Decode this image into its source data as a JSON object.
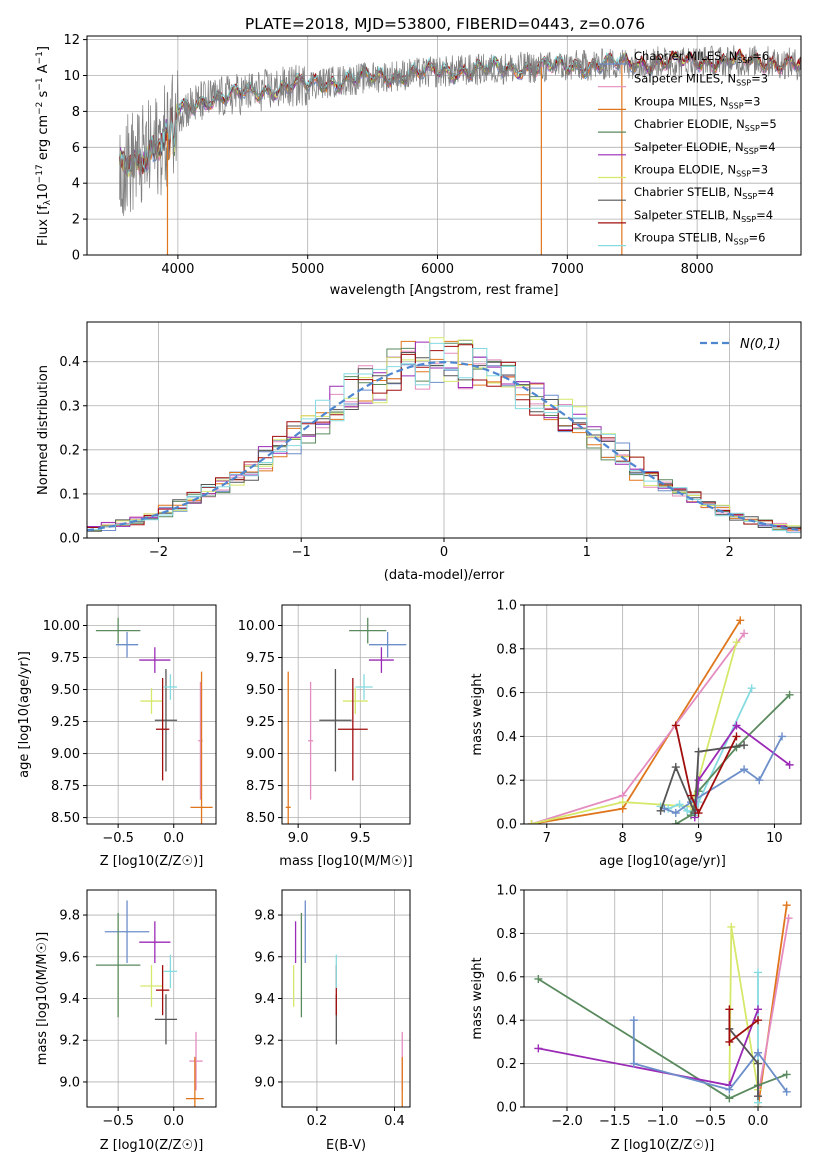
{
  "figure": {
    "title": "PLATE=2018, MJD=53800, FIBERID=0443, z=0.076"
  },
  "colors": {
    "Chabrier MILES": "#6c8ec9",
    "Salpeter MILES": "#e48cbf",
    "Kroupa MILES": "#e0761c",
    "Chabrier ELODIE": "#5a8a5e",
    "Salpeter ELODIE": "#9b2ab6",
    "Kroupa ELODIE": "#d6e86a",
    "Chabrier STELIB": "#555555",
    "Salpeter STELIB": "#a10e0e",
    "Kroupa STELIB": "#86dbe0",
    "normal_curve": "#4f86d0",
    "data_spectrum": "#7f7f7f"
  },
  "chart_data": [
    {
      "type": "line",
      "panel": "spectrum",
      "xlabel": "wavelength [Angstrom, rest frame]",
      "ylabel": "Flux [f_λ 10^-17 erg cm^-2 s^-1 A^-1]",
      "xlim": [
        3300,
        8800
      ],
      "ylim": [
        0,
        12.2
      ],
      "xticks": [
        4000,
        5000,
        6000,
        7000,
        8000
      ],
      "yticks": [
        0,
        2,
        4,
        6,
        8,
        10,
        12
      ],
      "legend_position": "right",
      "legend": [
        {
          "label": "Chabrier MILES, N",
          "sub": "SSP",
          "suffix": "=6"
        },
        {
          "label": "Salpeter MILES, N",
          "sub": "SSP",
          "suffix": "=3"
        },
        {
          "label": "Kroupa MILES, N",
          "sub": "SSP",
          "suffix": "=3"
        },
        {
          "label": "Chabrier ELODIE, N",
          "sub": "SSP",
          "suffix": "=5"
        },
        {
          "label": "Salpeter ELODIE, N",
          "sub": "SSP",
          "suffix": "=4"
        },
        {
          "label": "Kroupa ELODIE, N",
          "sub": "SSP",
          "suffix": "=3"
        },
        {
          "label": "Chabrier STELIB, N",
          "sub": "SSP",
          "suffix": "=4"
        },
        {
          "label": "Salpeter STELIB, N",
          "sub": "SSP",
          "suffix": "=4"
        },
        {
          "label": "Kroupa STELIB, N",
          "sub": "SSP",
          "suffix": "=6"
        }
      ],
      "continuum": {
        "x": [
          3550,
          3700,
          3800,
          3900,
          4000,
          4200,
          4500,
          5000,
          5500,
          6000,
          6500,
          7000,
          7500,
          8000,
          8500,
          8800
        ],
        "y": [
          5.0,
          5.3,
          5.8,
          6.5,
          8.0,
          8.6,
          9.0,
          9.5,
          9.9,
          10.2,
          10.4,
          10.5,
          10.7,
          10.8,
          10.8,
          10.6
        ]
      }
    },
    {
      "type": "line",
      "panel": "residual_histogram",
      "xlabel": "(data-model)/error",
      "ylabel": "Normed distribution",
      "xlim": [
        -2.5,
        2.5
      ],
      "ylim": [
        0,
        0.49
      ],
      "xticks": [
        -2,
        -1,
        0,
        1,
        2
      ],
      "yticks": [
        0.0,
        0.1,
        0.2,
        0.3,
        0.4
      ],
      "legend_position": "top-right",
      "legend_label": "N(0,1)",
      "bin_width": 0.1
    },
    {
      "type": "scatter",
      "panel": "age_vs_Z",
      "xlabel": "Z [log10(Z/Z☉)]",
      "ylabel": "age [log10(age/yr)]",
      "xlim": [
        -0.78,
        0.38
      ],
      "ylim": [
        8.45,
        10.16
      ],
      "xticks": [
        -0.5,
        0.0
      ],
      "yticks": [
        8.5,
        8.75,
        9.0,
        9.25,
        9.5,
        9.75,
        10.0
      ],
      "points": [
        {
          "model": "Chabrier MILES",
          "x": -0.42,
          "y": 9.85,
          "xerr": 0.1,
          "yerr": 0.1
        },
        {
          "model": "Salpeter MILES",
          "x": 0.24,
          "y": 9.1,
          "xerr": 0.02,
          "yerr": 0.46
        },
        {
          "model": "Kroupa MILES",
          "x": 0.25,
          "y": 8.58,
          "xerr": 0.1,
          "yerr": 1.06
        },
        {
          "model": "Chabrier ELODIE",
          "x": -0.5,
          "y": 9.96,
          "xerr": 0.2,
          "yerr": 0.1
        },
        {
          "model": "Salpeter ELODIE",
          "x": -0.17,
          "y": 9.73,
          "xerr": 0.14,
          "yerr": 0.1
        },
        {
          "model": "Kroupa ELODIE",
          "x": -0.2,
          "y": 9.41,
          "xerr": 0.1,
          "yerr": 0.1
        },
        {
          "model": "Chabrier STELIB",
          "x": -0.07,
          "y": 9.26,
          "xerr": 0.1,
          "yerr": 0.4
        },
        {
          "model": "Salpeter STELIB",
          "x": -0.1,
          "y": 9.19,
          "xerr": 0.06,
          "yerr": 0.4
        },
        {
          "model": "Kroupa STELIB",
          "x": -0.03,
          "y": 9.52,
          "xerr": 0.06,
          "yerr": 0.1
        }
      ]
    },
    {
      "type": "scatter",
      "panel": "age_vs_mass",
      "xlabel": "mass [log10(M/M☉)]",
      "ylabel": "",
      "xlim": [
        8.87,
        9.9
      ],
      "ylim": [
        8.45,
        10.16
      ],
      "xticks": [
        9.0,
        9.5
      ],
      "yticks": [
        8.5,
        8.75,
        9.0,
        9.25,
        9.5,
        9.75,
        10.0
      ],
      "points": [
        {
          "model": "Chabrier MILES",
          "x": 9.72,
          "y": 9.85,
          "xerr": 0.15,
          "yerr": 0.1
        },
        {
          "model": "Salpeter MILES",
          "x": 9.1,
          "y": 9.1,
          "xerr": 0.02,
          "yerr": 0.46
        },
        {
          "model": "Kroupa MILES",
          "x": 8.92,
          "y": 8.58,
          "xerr": 0.02,
          "yerr": 1.06
        },
        {
          "model": "Chabrier ELODIE",
          "x": 9.56,
          "y": 9.96,
          "xerr": 0.15,
          "yerr": 0.1
        },
        {
          "model": "Salpeter ELODIE",
          "x": 9.67,
          "y": 9.73,
          "xerr": 0.1,
          "yerr": 0.1
        },
        {
          "model": "Kroupa ELODIE",
          "x": 9.46,
          "y": 9.41,
          "xerr": 0.1,
          "yerr": 0.1
        },
        {
          "model": "Chabrier STELIB",
          "x": 9.3,
          "y": 9.26,
          "xerr": 0.13,
          "yerr": 0.4
        },
        {
          "model": "Salpeter STELIB",
          "x": 9.44,
          "y": 9.19,
          "xerr": 0.12,
          "yerr": 0.4
        },
        {
          "model": "Kroupa STELIB",
          "x": 9.53,
          "y": 9.52,
          "xerr": 0.07,
          "yerr": 0.1
        }
      ]
    },
    {
      "type": "line",
      "panel": "mass_weight_vs_age",
      "xlabel": "age [log10(age/yr)]",
      "ylabel": "mass weight",
      "xlim": [
        6.7,
        10.35
      ],
      "ylim": [
        0,
        1.0
      ],
      "xticks": [
        7,
        8,
        9,
        10
      ],
      "yticks": [
        0.0,
        0.2,
        0.4,
        0.6,
        0.8,
        1.0
      ],
      "series": [
        {
          "model": "Kroupa MILES",
          "x": [
            6.8,
            8.0,
            9.55
          ],
          "y": [
            0.0,
            0.07,
            0.93
          ]
        },
        {
          "model": "Salpeter MILES",
          "x": [
            6.8,
            8.0,
            9.6
          ],
          "y": [
            0.0,
            0.13,
            0.87
          ]
        },
        {
          "model": "Kroupa ELODIE",
          "x": [
            6.8,
            8.0,
            8.9,
            9.5
          ],
          "y": [
            0.0,
            0.1,
            0.08,
            0.83
          ]
        },
        {
          "model": "Kroupa STELIB",
          "x": [
            8.5,
            8.6,
            8.75,
            8.85,
            8.95,
            9.0,
            9.7
          ],
          "y": [
            0.08,
            0.07,
            0.09,
            0.06,
            0.04,
            0.1,
            0.62
          ]
        },
        {
          "model": "Chabrier ELODIE",
          "x": [
            8.7,
            8.9,
            9.0,
            9.5,
            10.2
          ],
          "y": [
            0.0,
            0.04,
            0.15,
            0.35,
            0.59
          ]
        },
        {
          "model": "Salpeter ELODIE",
          "x": [
            8.95,
            9.0,
            9.5,
            10.2
          ],
          "y": [
            0.03,
            0.2,
            0.45,
            0.27
          ]
        },
        {
          "model": "Chabrier MILES",
          "x": [
            8.55,
            8.7,
            8.9,
            9.6,
            9.8,
            10.1
          ],
          "y": [
            0.07,
            0.05,
            0.1,
            0.25,
            0.2,
            0.4
          ]
        },
        {
          "model": "Chabrier STELIB",
          "x": [
            8.5,
            8.7,
            8.95,
            9.0,
            9.6
          ],
          "y": [
            0.06,
            0.26,
            0.05,
            0.33,
            0.36
          ]
        },
        {
          "model": "Salpeter STELIB",
          "x": [
            8.7,
            8.9,
            9.0,
            9.5
          ],
          "y": [
            0.45,
            0.13,
            0.05,
            0.4
          ]
        }
      ]
    },
    {
      "type": "scatter",
      "panel": "mass_vs_Z",
      "xlabel": "Z [log10(Z/Z☉)]",
      "ylabel": "mass [log10(M/M☉)]",
      "xlim": [
        -0.78,
        0.38
      ],
      "ylim": [
        8.88,
        9.92
      ],
      "xticks": [
        -0.5,
        0.0
      ],
      "yticks": [
        9.0,
        9.2,
        9.4,
        9.6,
        9.8
      ],
      "points": [
        {
          "model": "Chabrier MILES",
          "x": -0.42,
          "y": 9.72,
          "xerr": 0.2,
          "yerr": 0.15
        },
        {
          "model": "Salpeter MILES",
          "x": 0.2,
          "y": 9.1,
          "xerr": 0.06,
          "yerr": 0.14
        },
        {
          "model": "Kroupa MILES",
          "x": 0.19,
          "y": 8.92,
          "xerr": 0.08,
          "yerr": 0.2
        },
        {
          "model": "Chabrier ELODIE",
          "x": -0.5,
          "y": 9.56,
          "xerr": 0.2,
          "yerr": 0.25
        },
        {
          "model": "Salpeter ELODIE",
          "x": -0.17,
          "y": 9.67,
          "xerr": 0.14,
          "yerr": 0.1
        },
        {
          "model": "Kroupa ELODIE",
          "x": -0.2,
          "y": 9.46,
          "xerr": 0.1,
          "yerr": 0.1
        },
        {
          "model": "Chabrier STELIB",
          "x": -0.07,
          "y": 9.3,
          "xerr": 0.1,
          "yerr": 0.12
        },
        {
          "model": "Salpeter STELIB",
          "x": -0.1,
          "y": 9.44,
          "xerr": 0.06,
          "yerr": 0.12
        },
        {
          "model": "Kroupa STELIB",
          "x": -0.03,
          "y": 9.53,
          "xerr": 0.06,
          "yerr": 0.08
        }
      ]
    },
    {
      "type": "scatter",
      "panel": "mass_vs_EBV",
      "xlabel": "E(B-V)",
      "ylabel": "",
      "xlim": [
        0.11,
        0.44
      ],
      "ylim": [
        8.88,
        9.92
      ],
      "xticks": [
        0.2,
        0.4
      ],
      "yticks": [
        9.0,
        9.2,
        9.4,
        9.6,
        9.8
      ],
      "points": [
        {
          "model": "Chabrier MILES",
          "x": 0.17,
          "y": 9.72,
          "yerr": 0.15
        },
        {
          "model": "Salpeter MILES",
          "x": 0.42,
          "y": 9.1,
          "yerr": 0.14
        },
        {
          "model": "Kroupa MILES",
          "x": 0.42,
          "y": 8.92,
          "yerr": 0.2
        },
        {
          "model": "Chabrier ELODIE",
          "x": 0.16,
          "y": 9.56,
          "yerr": 0.25
        },
        {
          "model": "Salpeter ELODIE",
          "x": 0.145,
          "y": 9.67,
          "yerr": 0.1
        },
        {
          "model": "Kroupa ELODIE",
          "x": 0.14,
          "y": 9.46,
          "yerr": 0.1
        },
        {
          "model": "Chabrier STELIB",
          "x": 0.25,
          "y": 9.3,
          "yerr": 0.12
        },
        {
          "model": "Salpeter STELIB",
          "x": 0.25,
          "y": 9.44,
          "yerr": 0.12
        },
        {
          "model": "Kroupa STELIB",
          "x": 0.25,
          "y": 9.53,
          "yerr": 0.08
        }
      ]
    },
    {
      "type": "line",
      "panel": "mass_weight_vs_Z",
      "xlabel": "Z [log10(Z/Z☉)]",
      "ylabel": "mass weight",
      "xlim": [
        -2.45,
        0.45
      ],
      "ylim": [
        0,
        1.0
      ],
      "xticks": [
        -2.0,
        -1.5,
        -1.0,
        -0.5,
        0.0
      ],
      "yticks": [
        0.0,
        0.2,
        0.4,
        0.6,
        0.8,
        1.0
      ],
      "series": [
        {
          "model": "Kroupa MILES",
          "x": [
            0.0,
            0.3
          ],
          "y": [
            0.0,
            0.93
          ]
        },
        {
          "model": "Salpeter MILES",
          "x": [
            0.0,
            0.32
          ],
          "y": [
            0.05,
            0.87
          ]
        },
        {
          "model": "Kroupa ELODIE",
          "x": [
            -0.3,
            -0.28,
            0.0
          ],
          "y": [
            0.1,
            0.83,
            0.08
          ]
        },
        {
          "model": "Kroupa STELIB",
          "x": [
            0.0,
            0.0
          ],
          "y": [
            0.62,
            0.02
          ]
        },
        {
          "model": "Chabrier ELODIE",
          "x": [
            -2.3,
            -0.3,
            0.0,
            0.3
          ],
          "y": [
            0.59,
            0.04,
            0.1,
            0.15
          ]
        },
        {
          "model": "Salpeter ELODIE",
          "x": [
            -2.3,
            -0.3,
            0.0
          ],
          "y": [
            0.27,
            0.1,
            0.45
          ]
        },
        {
          "model": "Chabrier MILES",
          "x": [
            -1.3,
            -1.3,
            -0.3,
            0.0,
            0.3
          ],
          "y": [
            0.4,
            0.2,
            0.08,
            0.25,
            0.07
          ]
        },
        {
          "model": "Chabrier STELIB",
          "x": [
            -0.3,
            0.0,
            0.0
          ],
          "y": [
            0.36,
            0.2,
            0.05
          ]
        },
        {
          "model": "Salpeter STELIB",
          "x": [
            -0.3,
            -0.3,
            0.0
          ],
          "y": [
            0.45,
            0.3,
            0.4
          ]
        }
      ]
    }
  ]
}
